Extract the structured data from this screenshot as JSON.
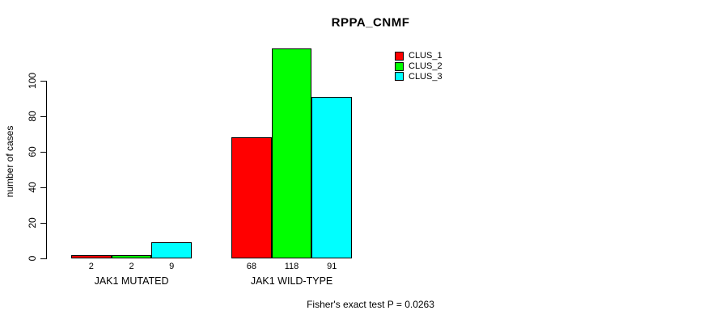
{
  "chart_data": {
    "type": "bar",
    "title": "RPPA_CNMF",
    "xlabel": "",
    "ylabel": "number of cases",
    "categories": [
      "JAK1 MUTATED",
      "JAK1 WILD-TYPE"
    ],
    "series": [
      {
        "name": "CLUS_1",
        "color": "#ff0000",
        "values": [
          2,
          68
        ]
      },
      {
        "name": "CLUS_2",
        "color": "#00ff00",
        "values": [
          2,
          118
        ]
      },
      {
        "name": "CLUS_3",
        "color": "#00ffff",
        "values": [
          9,
          91
        ]
      }
    ],
    "yticks": [
      0,
      20,
      40,
      60,
      80,
      100
    ],
    "ylim": [
      0,
      120
    ],
    "grid": false,
    "show_bar_values": true,
    "legend_position": "top-right",
    "bar_border_color": "#000000",
    "annotation": "Fisher's exact test P = 0.0263"
  }
}
